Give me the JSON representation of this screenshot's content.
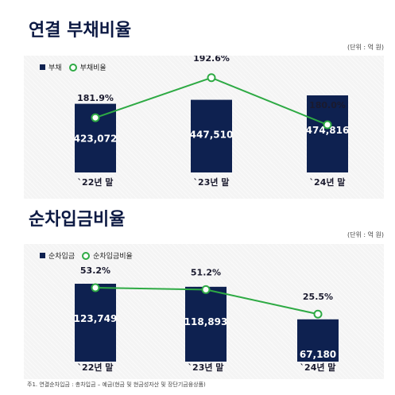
{
  "charts": [
    {
      "title": "연결 부채비율",
      "unit": "(단위 : 억 원)",
      "legend": {
        "bar": "부채",
        "line": "부채비율"
      }
    },
    {
      "title": "순차입금비율",
      "unit": "(단위 : 억 원)",
      "legend": {
        "bar": "순차입금",
        "line": "순차입금비율"
      }
    }
  ],
  "footnote": "주1. 연결순차입금 : 총차입금 – 예금(현금 및 현금성자산 및 장단기금융상품)",
  "colors": {
    "bar": "#0e2150",
    "line": "#2eaa44",
    "panel": "#f4f4f4"
  },
  "chart_data": [
    {
      "type": "bar+line",
      "title": "연결 부채비율",
      "categories": [
        "`22년 말",
        "`23년 말",
        "`24년 말"
      ],
      "series": [
        {
          "name": "부채",
          "type": "bar",
          "values": [
            423072,
            447510,
            474816
          ],
          "labels": [
            "423,072",
            "447,510",
            "474,816"
          ]
        },
        {
          "name": "부채비율",
          "type": "line",
          "values": [
            181.9,
            192.6,
            180.0
          ],
          "labels": [
            "181.9%",
            "192.6%",
            "180.0%"
          ]
        }
      ]
    },
    {
      "type": "bar+line",
      "title": "순차입금비율",
      "categories": [
        "`22년 말",
        "`23년 말",
        "`24년 말"
      ],
      "series": [
        {
          "name": "순차입금",
          "type": "bar",
          "values": [
            123749,
            118893,
            67180
          ],
          "labels": [
            "123,749",
            "118,893",
            "67,180"
          ]
        },
        {
          "name": "순차입금비율",
          "type": "line",
          "values": [
            53.2,
            51.2,
            25.5
          ],
          "labels": [
            "53.2%",
            "51.2%",
            "25.5%"
          ]
        }
      ]
    }
  ]
}
